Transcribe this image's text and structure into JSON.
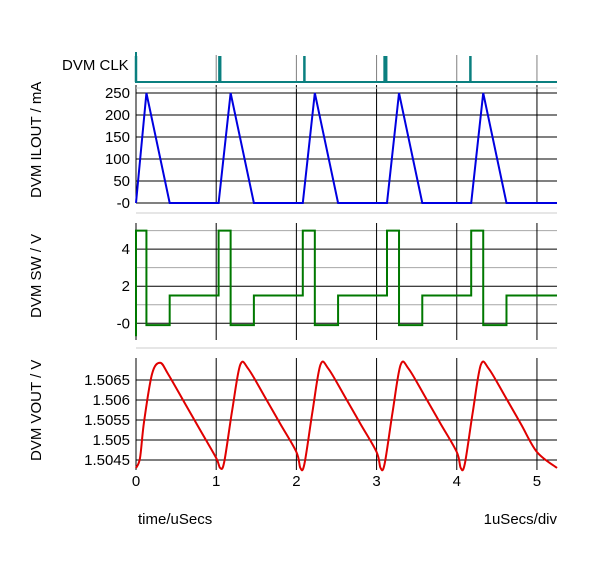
{
  "chart_data": [
    {
      "type": "line",
      "name": "DVM CLK",
      "ylabel": "",
      "label": "DVM CLK",
      "color": "#0a7f7f",
      "pulse_times_us": [
        0.0,
        1.04,
        1.05,
        2.1,
        3.1,
        3.12,
        4.17
      ],
      "x": [
        0.0,
        0.01,
        0.02,
        0.03,
        5.25
      ],
      "values": [
        0,
        1,
        0,
        0,
        0
      ]
    },
    {
      "type": "line",
      "name": "DVM ILOUT",
      "ylabel": "DVM ILOUT / mA",
      "yticks": [
        "250",
        "200",
        "150",
        "100",
        "50",
        "-0"
      ],
      "ylim": [
        0,
        250
      ],
      "color": "#0000e0",
      "x": [
        0.0,
        0.13,
        0.42,
        1.03,
        1.18,
        1.47,
        2.08,
        2.23,
        2.52,
        3.13,
        3.28,
        3.57,
        4.18,
        4.33,
        4.62,
        5.25
      ],
      "values": [
        0,
        250,
        0,
        0,
        250,
        0,
        0,
        250,
        0,
        0,
        250,
        0,
        0,
        250,
        0,
        0
      ]
    },
    {
      "type": "line",
      "name": "DVM SW",
      "ylabel": "DVM SW / V",
      "yticks": [
        "4",
        "2",
        "-0"
      ],
      "ylim": [
        -0.9,
        5.3
      ],
      "color": "#007800",
      "x": [
        0.0,
        0.0,
        0.13,
        0.13,
        0.42,
        0.42,
        1.03,
        1.03,
        1.18,
        1.18,
        1.47,
        1.47,
        2.08,
        2.08,
        2.23,
        2.23,
        2.52,
        2.52,
        3.13,
        3.13,
        3.28,
        3.28,
        3.57,
        3.57,
        4.18,
        4.18,
        4.33,
        4.33,
        4.62,
        4.62,
        5.25
      ],
      "values": [
        -0.7,
        5.0,
        5.0,
        -0.1,
        -0.1,
        1.5,
        1.5,
        5.0,
        5.0,
        -0.1,
        -0.1,
        1.5,
        1.5,
        5.0,
        5.0,
        -0.1,
        -0.1,
        1.5,
        1.5,
        5.0,
        5.0,
        -0.1,
        -0.1,
        1.5,
        1.5,
        5.0,
        5.0,
        -0.1,
        -0.1,
        1.5,
        1.5
      ]
    },
    {
      "type": "line",
      "name": "DVM VOUT",
      "ylabel": "DVM VOUT / V",
      "yticks": [
        "1.5065",
        "1.506",
        "1.5055",
        "1.505",
        "1.5045"
      ],
      "ylim": [
        1.50425,
        1.50705
      ],
      "color": "#e00000",
      "x": [
        0.0,
        0.05,
        0.1,
        0.2,
        0.3,
        0.4,
        0.6,
        0.8,
        1.0,
        1.05,
        1.1,
        1.2,
        1.3,
        1.4,
        1.6,
        1.8,
        2.0,
        2.05,
        2.1,
        2.2,
        2.3,
        2.4,
        2.6,
        2.8,
        3.0,
        3.05,
        3.1,
        3.2,
        3.3,
        3.4,
        3.6,
        3.8,
        4.0,
        4.05,
        4.1,
        4.2,
        4.3,
        4.4,
        4.6,
        4.8,
        5.0,
        5.25
      ],
      "values": [
        1.5043,
        1.50455,
        1.50545,
        1.50665,
        1.50693,
        1.50665,
        1.50595,
        1.50525,
        1.50455,
        1.5043,
        1.50445,
        1.50575,
        1.50688,
        1.50678,
        1.5061,
        1.5054,
        1.5047,
        1.5043,
        1.5044,
        1.5057,
        1.50688,
        1.50678,
        1.5061,
        1.5054,
        1.5047,
        1.5043,
        1.5044,
        1.5057,
        1.50688,
        1.50678,
        1.5061,
        1.5054,
        1.5047,
        1.5043,
        1.5044,
        1.5057,
        1.50688,
        1.50678,
        1.5061,
        1.5054,
        1.5047,
        1.5043
      ]
    }
  ],
  "xaxis": {
    "ticks": [
      "0",
      "1",
      "2",
      "3",
      "4",
      "5"
    ],
    "xlim": [
      0,
      5.25
    ],
    "xlabel": "time/uSecs",
    "scale_label": "1uSecs/div"
  }
}
